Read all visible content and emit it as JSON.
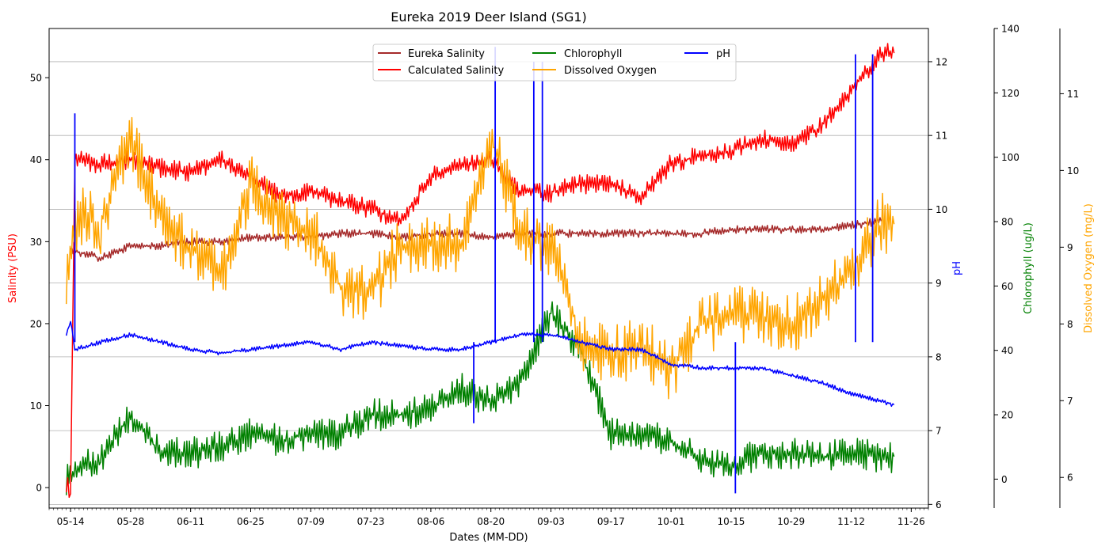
{
  "chart_data": {
    "type": "line",
    "title": "Eureka 2019 Deer Island (SG1)",
    "xlabel": "Dates (MM-DD)",
    "x_ticks": [
      "05-14",
      "05-28",
      "06-11",
      "06-25",
      "07-09",
      "07-23",
      "08-06",
      "08-20",
      "09-03",
      "09-17",
      "10-01",
      "10-15",
      "10-29",
      "11-12",
      "11-26"
    ],
    "grid": "horizontal (pH axis)",
    "legend_position": "top-center",
    "axes": [
      {
        "id": "salinity",
        "label": "Salinity (PSU)",
        "color": "#ff0000",
        "side": "left",
        "ylim": [
          -2.5,
          56
        ],
        "ticks": [
          0,
          10,
          20,
          30,
          40,
          50
        ]
      },
      {
        "id": "ph",
        "label": "pH",
        "color": "#0000ff",
        "side": "right",
        "ylim": [
          5.95,
          12.45
        ],
        "ticks": [
          6,
          7,
          8,
          9,
          10,
          11,
          12
        ]
      },
      {
        "id": "chl",
        "label": "Chlorophyll (ug/L)",
        "color": "#008000",
        "side": "right",
        "ylim": [
          -9,
          140
        ],
        "ticks": [
          0,
          20,
          40,
          60,
          80,
          100,
          120,
          140
        ]
      },
      {
        "id": "do",
        "label": "Dissolved Oxygen (mg/L)",
        "color": "#ffa500",
        "side": "right",
        "ylim": [
          5.6,
          11.85
        ],
        "ticks": [
          6,
          7,
          8,
          9,
          10,
          11
        ]
      }
    ],
    "series": [
      {
        "name": "Eureka Salinity",
        "axis": "salinity",
        "color": "#a52a2a",
        "points": [
          [
            "05-14",
            29.0
          ],
          [
            "05-21",
            28.0
          ],
          [
            "05-28",
            29.5
          ],
          [
            "06-04",
            29.5
          ],
          [
            "06-11",
            30.0
          ],
          [
            "06-18",
            30.0
          ],
          [
            "06-25",
            30.5
          ],
          [
            "07-02",
            30.5
          ],
          [
            "07-09",
            30.5
          ],
          [
            "07-16",
            31.0
          ],
          [
            "07-23",
            31.0
          ],
          [
            "07-30",
            30.5
          ],
          [
            "08-06",
            31.0
          ],
          [
            "08-13",
            31.0
          ],
          [
            "08-20",
            30.5
          ],
          [
            "08-27",
            31.0
          ],
          [
            "09-03",
            31.0
          ],
          [
            "09-10",
            31.0
          ],
          [
            "09-17",
            31.0
          ],
          [
            "09-24",
            31.0
          ],
          [
            "10-01",
            31.0
          ],
          [
            "10-08",
            31.0
          ],
          [
            "10-15",
            31.5
          ],
          [
            "10-22",
            31.5
          ],
          [
            "10-29",
            31.5
          ],
          [
            "11-05",
            31.5
          ],
          [
            "11-12",
            32.0
          ],
          [
            "11-19",
            32.5
          ]
        ]
      },
      {
        "name": "Calculated Salinity",
        "axis": "salinity",
        "color": "#ff0000",
        "points": [
          [
            "05-13",
            0.0
          ],
          [
            "05-14",
            0.0
          ],
          [
            "05-15",
            40.0
          ],
          [
            "05-21",
            39.5
          ],
          [
            "05-28",
            40.0
          ],
          [
            "06-04",
            39.0
          ],
          [
            "06-11",
            38.5
          ],
          [
            "06-18",
            40.0
          ],
          [
            "06-25",
            38.0
          ],
          [
            "07-02",
            35.5
          ],
          [
            "07-09",
            36.0
          ],
          [
            "07-16",
            35.0
          ],
          [
            "07-23",
            34.0
          ],
          [
            "07-30",
            32.5
          ],
          [
            "08-06",
            38.0
          ],
          [
            "08-13",
            39.5
          ],
          [
            "08-20",
            40.0
          ],
          [
            "08-27",
            36.0
          ],
          [
            "09-03",
            36.0
          ],
          [
            "09-10",
            37.0
          ],
          [
            "09-17",
            37.0
          ],
          [
            "09-24",
            35.5
          ],
          [
            "10-01",
            39.5
          ],
          [
            "10-08",
            40.5
          ],
          [
            "10-15",
            41.0
          ],
          [
            "10-22",
            42.5
          ],
          [
            "10-29",
            42.0
          ],
          [
            "11-05",
            44.0
          ],
          [
            "11-12",
            48.5
          ],
          [
            "11-19",
            53.0
          ],
          [
            "11-22",
            53.0
          ]
        ]
      },
      {
        "name": "Chlorophyll",
        "axis": "chl",
        "color": "#008000",
        "points": [
          [
            "05-13",
            0.0
          ],
          [
            "05-16",
            4.0
          ],
          [
            "05-21",
            6.0
          ],
          [
            "05-28",
            20.0
          ],
          [
            "06-04",
            8.0
          ],
          [
            "06-11",
            8.0
          ],
          [
            "06-18",
            10.0
          ],
          [
            "06-25",
            14.0
          ],
          [
            "07-02",
            12.0
          ],
          [
            "07-09",
            14.0
          ],
          [
            "07-16",
            14.0
          ],
          [
            "07-23",
            20.0
          ],
          [
            "07-30",
            20.0
          ],
          [
            "08-06",
            22.0
          ],
          [
            "08-13",
            28.0
          ],
          [
            "08-20",
            24.0
          ],
          [
            "08-27",
            30.0
          ],
          [
            "09-03",
            52.0
          ],
          [
            "09-10",
            40.0
          ],
          [
            "09-17",
            14.0
          ],
          [
            "09-24",
            14.0
          ],
          [
            "10-01",
            12.0
          ],
          [
            "10-08",
            6.0
          ],
          [
            "10-15",
            4.0
          ],
          [
            "10-22",
            8.0
          ],
          [
            "10-29",
            8.0
          ],
          [
            "11-05",
            7.0
          ],
          [
            "11-12",
            8.0
          ],
          [
            "11-19",
            7.0
          ],
          [
            "11-22",
            7.0
          ]
        ]
      },
      {
        "name": "Dissolved Oxygen",
        "axis": "do",
        "color": "#ffa500",
        "points": [
          [
            "05-13",
            8.6
          ],
          [
            "05-16",
            9.4
          ],
          [
            "05-21",
            9.3
          ],
          [
            "05-28",
            10.4
          ],
          [
            "06-04",
            9.4
          ],
          [
            "06-11",
            9.0
          ],
          [
            "06-18",
            8.6
          ],
          [
            "06-25",
            9.8
          ],
          [
            "07-02",
            9.4
          ],
          [
            "07-09",
            9.2
          ],
          [
            "07-16",
            8.5
          ],
          [
            "07-23",
            8.4
          ],
          [
            "07-30",
            9.0
          ],
          [
            "08-06",
            9.1
          ],
          [
            "08-13",
            9.0
          ],
          [
            "08-20",
            10.4
          ],
          [
            "08-27",
            9.2
          ],
          [
            "09-03",
            9.0
          ],
          [
            "09-10",
            7.8
          ],
          [
            "09-17",
            7.6
          ],
          [
            "09-24",
            7.7
          ],
          [
            "10-01",
            7.4
          ],
          [
            "10-08",
            8.0
          ],
          [
            "10-15",
            8.1
          ],
          [
            "10-22",
            8.1
          ],
          [
            "10-29",
            8.0
          ],
          [
            "11-05",
            8.3
          ],
          [
            "11-12",
            8.7
          ],
          [
            "11-19",
            9.3
          ],
          [
            "11-22",
            9.3
          ]
        ]
      },
      {
        "name": "pH",
        "axis": "ph",
        "color": "#0000ff",
        "points": [
          [
            "05-13",
            8.3
          ],
          [
            "05-14",
            8.5
          ],
          [
            "05-15",
            8.1
          ],
          [
            "05-21",
            8.2
          ],
          [
            "05-28",
            8.3
          ],
          [
            "06-04",
            8.2
          ],
          [
            "06-11",
            8.1
          ],
          [
            "06-18",
            8.05
          ],
          [
            "06-25",
            8.1
          ],
          [
            "07-02",
            8.15
          ],
          [
            "07-09",
            8.2
          ],
          [
            "07-16",
            8.1
          ],
          [
            "07-23",
            8.2
          ],
          [
            "07-30",
            8.15
          ],
          [
            "08-06",
            8.1
          ],
          [
            "08-13",
            8.1
          ],
          [
            "08-20",
            8.2
          ],
          [
            "08-27",
            8.3
          ],
          [
            "09-03",
            8.3
          ],
          [
            "09-10",
            8.2
          ],
          [
            "09-17",
            8.1
          ],
          [
            "09-24",
            8.1
          ],
          [
            "10-01",
            7.9
          ],
          [
            "10-08",
            7.85
          ],
          [
            "10-15",
            7.85
          ],
          [
            "10-22",
            7.85
          ],
          [
            "10-29",
            7.75
          ],
          [
            "11-05",
            7.65
          ],
          [
            "11-12",
            7.5
          ],
          [
            "11-19",
            7.4
          ],
          [
            "11-22",
            7.35
          ]
        ]
      }
    ],
    "annotations": {
      "pH_spikes": [
        [
          "05-15",
          11.3
        ],
        [
          "08-16",
          7.1
        ],
        [
          "08-21",
          12.2
        ],
        [
          "08-30",
          12.0
        ],
        [
          "09-01",
          12.0
        ],
        [
          "10-16",
          6.15
        ],
        [
          "11-13",
          12.1
        ],
        [
          "11-17",
          12.1
        ]
      ]
    }
  }
}
